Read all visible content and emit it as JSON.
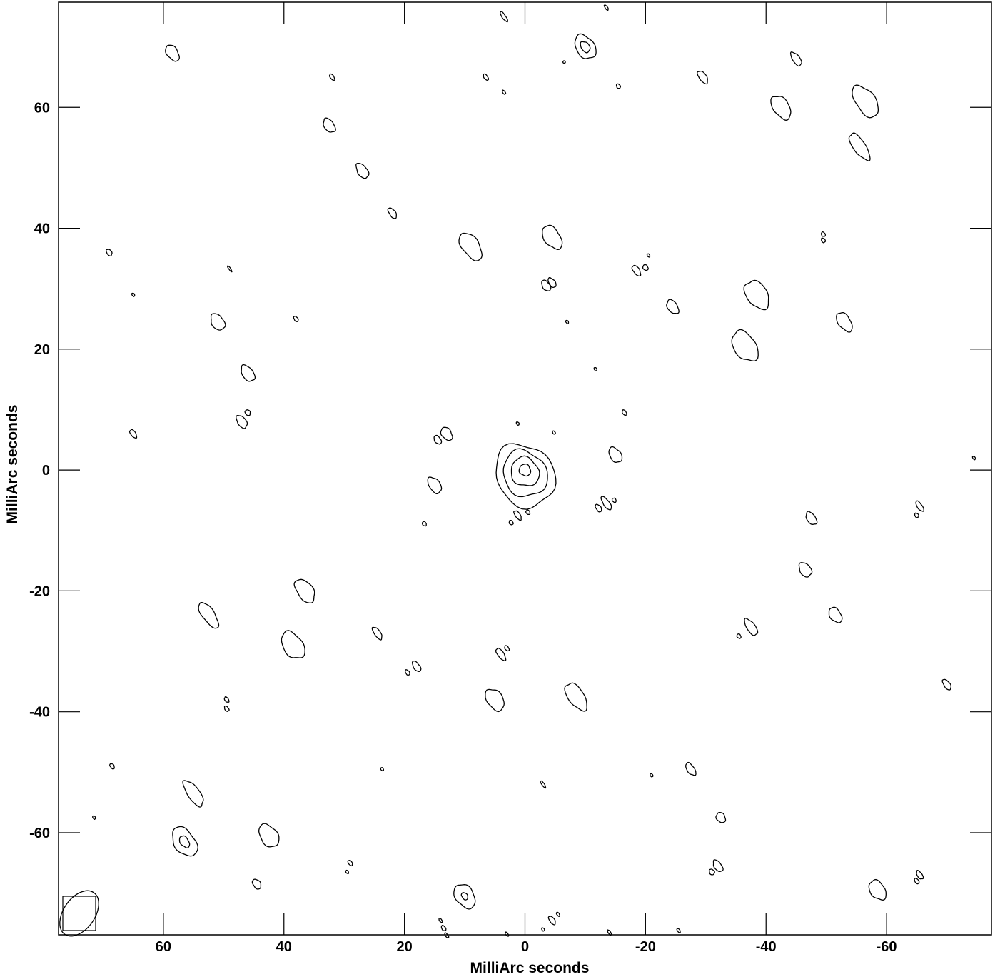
{
  "chart_data": {
    "type": "contour",
    "title": "",
    "xlabel": "MilliArc seconds",
    "ylabel": "MilliArc seconds",
    "xlim": [
      77.4,
      -77.4
    ],
    "ylim": [
      -76.9,
      77.4
    ],
    "x_ticks": [
      60,
      40,
      20,
      0,
      -20,
      -40,
      -60
    ],
    "y_ticks": [
      60,
      40,
      20,
      0,
      -20,
      -40,
      -60
    ],
    "x_tick_labels": [
      "60",
      "40",
      "20",
      "0",
      "-20",
      "-40",
      "-60"
    ],
    "y_tick_labels": [
      "60",
      "40",
      "20",
      "0",
      "-20",
      "-40",
      "-60"
    ],
    "minor_tick_step": 0,
    "core": {
      "x": 0,
      "y": 0,
      "levels": 4,
      "major": [
        2.0,
        5.0,
        8.0,
        11.0
      ],
      "minor": [
        1.1,
        2.7,
        4.2,
        5.6
      ],
      "pa": 35
    },
    "beam": {
      "major": 4.2,
      "minor": 2.6,
      "pa": 35
    },
    "blobs": [
      {
        "x": 58.5,
        "y": 69,
        "a": 1.5,
        "b": 0.9
      },
      {
        "x": 3.5,
        "y": 75,
        "a": 1.0,
        "b": 0.3
      },
      {
        "x": -10,
        "y": 70,
        "a": 2.2,
        "b": 1.5,
        "inner": 0.9
      },
      {
        "x": -45,
        "y": 68,
        "a": 1.3,
        "b": 0.6
      },
      {
        "x": -29.5,
        "y": 65,
        "a": 1.2,
        "b": 0.6
      },
      {
        "x": 32,
        "y": 65,
        "a": 0.6,
        "b": 0.3
      },
      {
        "x": 6.5,
        "y": 65,
        "a": 0.6,
        "b": 0.3
      },
      {
        "x": -15.5,
        "y": 63.5,
        "a": 0.4,
        "b": 0.3
      },
      {
        "x": -56.5,
        "y": 61,
        "a": 3.0,
        "b": 1.6
      },
      {
        "x": -42.5,
        "y": 60,
        "a": 2.2,
        "b": 1.3
      },
      {
        "x": -55.5,
        "y": 53.5,
        "a": 2.6,
        "b": 1.0
      },
      {
        "x": 32.5,
        "y": 57,
        "a": 1.3,
        "b": 0.8
      },
      {
        "x": 27,
        "y": 49.5,
        "a": 1.4,
        "b": 0.8
      },
      {
        "x": 22,
        "y": 42.5,
        "a": 1.0,
        "b": 0.5
      },
      {
        "x": 9,
        "y": 37,
        "a": 2.6,
        "b": 1.4
      },
      {
        "x": -4.5,
        "y": 38.5,
        "a": 2.2,
        "b": 1.3
      },
      {
        "x": -49.5,
        "y": 39,
        "a": 0.4,
        "b": 0.3
      },
      {
        "x": -49.5,
        "y": 38,
        "a": 0.4,
        "b": 0.3
      },
      {
        "x": 69,
        "y": 36,
        "a": 0.6,
        "b": 0.4
      },
      {
        "x": -18.5,
        "y": 33,
        "a": 1.0,
        "b": 0.5
      },
      {
        "x": -20,
        "y": 33.5,
        "a": 0.5,
        "b": 0.4
      },
      {
        "x": -3.5,
        "y": 30.5,
        "a": 1.0,
        "b": 0.6
      },
      {
        "x": -4.5,
        "y": 31,
        "a": 0.9,
        "b": 0.5
      },
      {
        "x": 65,
        "y": 29,
        "a": 0.3,
        "b": 0.2
      },
      {
        "x": -38.5,
        "y": 29,
        "a": 2.6,
        "b": 1.7
      },
      {
        "x": -24.5,
        "y": 27,
        "a": 1.3,
        "b": 0.8
      },
      {
        "x": 51,
        "y": 24.5,
        "a": 1.5,
        "b": 1.0
      },
      {
        "x": 38,
        "y": 25,
        "a": 0.5,
        "b": 0.3
      },
      {
        "x": -7,
        "y": 24.5,
        "a": 0.3,
        "b": 0.2
      },
      {
        "x": -53,
        "y": 24.5,
        "a": 1.8,
        "b": 1.0
      },
      {
        "x": -36.5,
        "y": 20.5,
        "a": 2.8,
        "b": 1.8
      },
      {
        "x": 46,
        "y": 16,
        "a": 1.5,
        "b": 0.9
      },
      {
        "x": 47,
        "y": 8,
        "a": 1.2,
        "b": 0.7
      },
      {
        "x": 46,
        "y": 9.5,
        "a": 0.5,
        "b": 0.4
      },
      {
        "x": 13,
        "y": 6,
        "a": 1.2,
        "b": 0.8
      },
      {
        "x": 14.5,
        "y": 5,
        "a": 0.8,
        "b": 0.5
      },
      {
        "x": -15,
        "y": 2.5,
        "a": 1.4,
        "b": 0.9
      },
      {
        "x": 15,
        "y": -2.5,
        "a": 1.5,
        "b": 0.9
      },
      {
        "x": 1.2,
        "y": -7.5,
        "a": 0.9,
        "b": 0.4
      },
      {
        "x": -0.5,
        "y": -7,
        "a": 0.4,
        "b": 0.3
      },
      {
        "x": 2.3,
        "y": -8.7,
        "a": 0.4,
        "b": 0.3
      },
      {
        "x": -13.5,
        "y": -5.5,
        "a": 1.3,
        "b": 0.5
      },
      {
        "x": -12.2,
        "y": -6.3,
        "a": 0.7,
        "b": 0.4
      },
      {
        "x": -14.8,
        "y": -5,
        "a": 0.4,
        "b": 0.3
      },
      {
        "x": 16.7,
        "y": -8.9,
        "a": 0.4,
        "b": 0.3
      },
      {
        "x": -47.5,
        "y": -8,
        "a": 1.2,
        "b": 0.7
      },
      {
        "x": -46.5,
        "y": -16.5,
        "a": 1.3,
        "b": 0.9
      },
      {
        "x": 36.5,
        "y": -20,
        "a": 2.2,
        "b": 1.3
      },
      {
        "x": 52.5,
        "y": -24,
        "a": 2.5,
        "b": 1.0
      },
      {
        "x": -51.5,
        "y": -24,
        "a": 1.4,
        "b": 0.9
      },
      {
        "x": 38.5,
        "y": -29,
        "a": 2.5,
        "b": 1.6
      },
      {
        "x": -37.5,
        "y": -26,
        "a": 1.6,
        "b": 0.7
      },
      {
        "x": 24.5,
        "y": -27,
        "a": 1.2,
        "b": 0.5
      },
      {
        "x": 4,
        "y": -30.5,
        "a": 1.2,
        "b": 0.5
      },
      {
        "x": 3,
        "y": -29.5,
        "a": 0.5,
        "b": 0.3
      },
      {
        "x": 18,
        "y": -32.5,
        "a": 1.0,
        "b": 0.5
      },
      {
        "x": 19.5,
        "y": -33.5,
        "a": 0.5,
        "b": 0.3
      },
      {
        "x": 5,
        "y": -38,
        "a": 2.0,
        "b": 1.3
      },
      {
        "x": -8.5,
        "y": -37.5,
        "a": 2.6,
        "b": 1.3
      },
      {
        "x": 49.5,
        "y": -38,
        "a": 0.5,
        "b": 0.3
      },
      {
        "x": 49.5,
        "y": -39.5,
        "a": 0.5,
        "b": 0.3
      },
      {
        "x": -70,
        "y": -35.5,
        "a": 1.0,
        "b": 0.5
      },
      {
        "x": 68.5,
        "y": -49,
        "a": 0.5,
        "b": 0.3
      },
      {
        "x": 23.7,
        "y": -49.5,
        "a": 0.3,
        "b": 0.2
      },
      {
        "x": -27.5,
        "y": -49.5,
        "a": 1.2,
        "b": 0.6
      },
      {
        "x": -21,
        "y": -50.5,
        "a": 0.3,
        "b": 0.2
      },
      {
        "x": 55,
        "y": -53.5,
        "a": 2.5,
        "b": 1.0
      },
      {
        "x": -3,
        "y": -52,
        "a": 0.7,
        "b": 0.2
      },
      {
        "x": -32.5,
        "y": -57.5,
        "a": 0.9,
        "b": 0.7
      },
      {
        "x": 56.5,
        "y": -61.5,
        "a": 2.7,
        "b": 1.7,
        "inner": 0.8
      },
      {
        "x": 42.5,
        "y": -60.5,
        "a": 2.1,
        "b": 1.4
      },
      {
        "x": 71.5,
        "y": -57.5,
        "a": 0.3,
        "b": 0.2
      },
      {
        "x": 29,
        "y": -65,
        "a": 0.5,
        "b": 0.3
      },
      {
        "x": 29.5,
        "y": -66.5,
        "a": 0.3,
        "b": 0.2
      },
      {
        "x": -32,
        "y": -65.5,
        "a": 1.1,
        "b": 0.6
      },
      {
        "x": -31,
        "y": -66.5,
        "a": 0.5,
        "b": 0.4
      },
      {
        "x": 44.5,
        "y": -68.5,
        "a": 0.9,
        "b": 0.6
      },
      {
        "x": 10,
        "y": -70.5,
        "a": 2.2,
        "b": 1.5,
        "inner": 0.6
      },
      {
        "x": -58.5,
        "y": -69.5,
        "a": 1.8,
        "b": 1.2
      },
      {
        "x": -65.5,
        "y": -67,
        "a": 0.8,
        "b": 0.4
      },
      {
        "x": -65,
        "y": -68,
        "a": 0.5,
        "b": 0.3
      },
      {
        "x": -4.5,
        "y": -74.5,
        "a": 0.8,
        "b": 0.4
      },
      {
        "x": -5.5,
        "y": -73.5,
        "a": 0.4,
        "b": 0.2
      },
      {
        "x": 14,
        "y": -74.5,
        "a": 0.4,
        "b": 0.2
      },
      {
        "x": 13.5,
        "y": -75.8,
        "a": 0.5,
        "b": 0.3
      },
      {
        "x": -3,
        "y": -76,
        "a": 0.3,
        "b": 0.2
      },
      {
        "x": -74.5,
        "y": 2,
        "a": 0.3,
        "b": 0.2
      },
      {
        "x": 65,
        "y": 6,
        "a": 0.8,
        "b": 0.4
      },
      {
        "x": -16.5,
        "y": 9.5,
        "a": 0.5,
        "b": 0.3
      },
      {
        "x": -4.8,
        "y": 6.2,
        "a": 0.3,
        "b": 0.2
      },
      {
        "x": 1.2,
        "y": 7.7,
        "a": 0.3,
        "b": 0.2
      },
      {
        "x": -11.7,
        "y": 16.7,
        "a": 0.3,
        "b": 0.2
      },
      {
        "x": -20.5,
        "y": 35.5,
        "a": 0.3,
        "b": 0.2
      },
      {
        "x": -6.5,
        "y": 67.5,
        "a": 0.2,
        "b": 0.2
      },
      {
        "x": 3.5,
        "y": 62.5,
        "a": 0.4,
        "b": 0.2
      },
      {
        "x": -13.5,
        "y": 76.5,
        "a": 0.5,
        "b": 0.2
      },
      {
        "x": 49,
        "y": 33.3,
        "a": 0.6,
        "b": 0.15
      },
      {
        "x": -35.5,
        "y": -27.5,
        "a": 0.4,
        "b": 0.3
      },
      {
        "x": -65.5,
        "y": -6,
        "a": 1.0,
        "b": 0.4
      },
      {
        "x": -65,
        "y": -7.5,
        "a": 0.4,
        "b": 0.3
      },
      {
        "x": -14,
        "y": -76.5,
        "a": 0.5,
        "b": 0.2
      },
      {
        "x": -25.5,
        "y": -76.2,
        "a": 0.4,
        "b": 0.2
      },
      {
        "x": 3,
        "y": -76.8,
        "a": 0.4,
        "b": 0.2
      },
      {
        "x": 13,
        "y": -77.0,
        "a": 0.5,
        "b": 0.2
      }
    ]
  }
}
